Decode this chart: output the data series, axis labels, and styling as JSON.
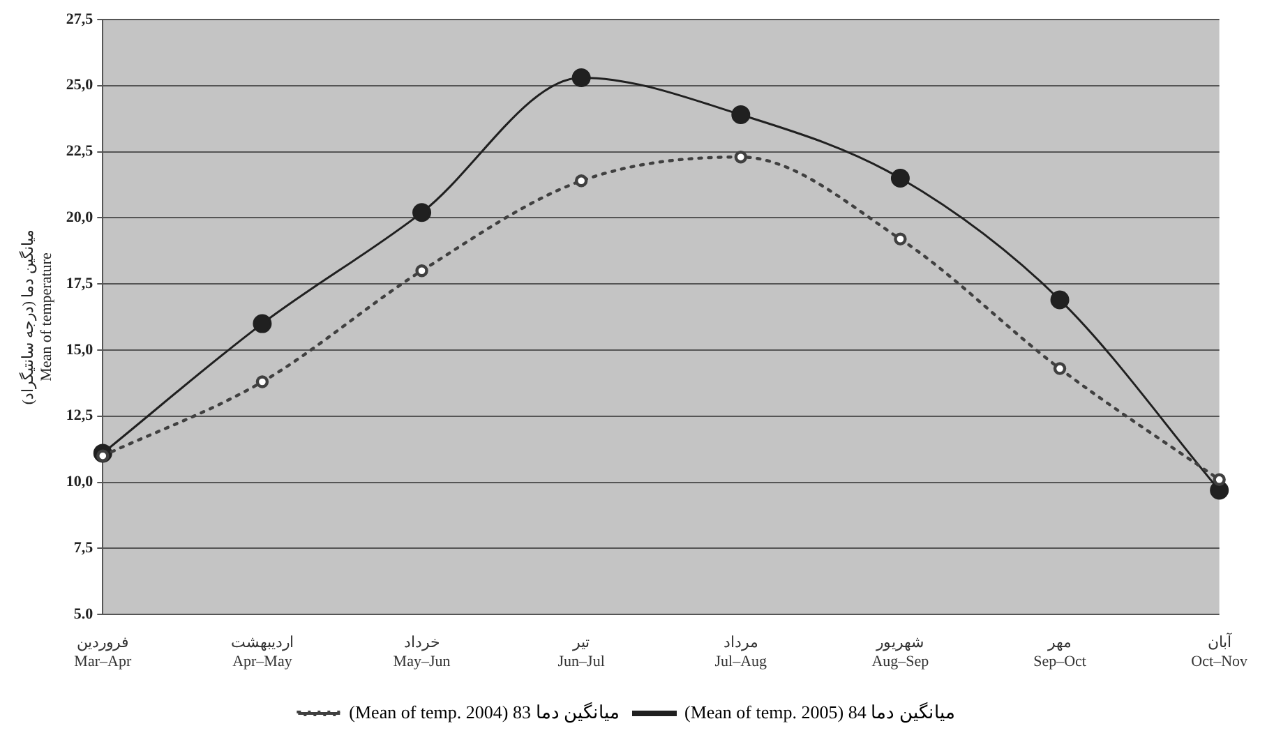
{
  "chart_data": {
    "type": "line",
    "ylabel": "میانگین دما (درجه سانتیگراد)\nMean of temperature",
    "categories": [
      "فروردین\nMar–Apr",
      "اردیبهشت\nApr–May",
      "خرداد\nMay–Jun",
      "تیر\nJun–Jul",
      "مرداد\nJul–Aug",
      "شهریور\nAug–Sep",
      "مهر\nSep–Oct",
      "آبان\nOct–Nov"
    ],
    "series": [
      {
        "name": "(Mean of temp. 2004) 83 میانگین دما",
        "color": "#404040",
        "line_style": "dotted",
        "marker": "circle",
        "values": [
          11.0,
          13.8,
          18.0,
          21.4,
          22.3,
          19.2,
          14.3,
          10.1
        ]
      },
      {
        "name": "(Mean of temp. 2005) 84 میانگین دما",
        "color": "#202020",
        "line_style": "solid",
        "marker": "circle",
        "values": [
          11.1,
          16.0,
          20.2,
          25.3,
          23.9,
          21.5,
          16.9,
          9.7
        ]
      }
    ],
    "ylim": [
      5,
      27.5
    ],
    "yticks": [
      {
        "value": 5,
        "label": "5.0"
      },
      {
        "value": 7.5,
        "label": "7,5"
      },
      {
        "value": 10,
        "label": "10,0"
      },
      {
        "value": 12.5,
        "label": "12,5"
      },
      {
        "value": 15,
        "label": "15,0"
      },
      {
        "value": 17.5,
        "label": "17,5"
      },
      {
        "value": 20,
        "label": "20,0"
      },
      {
        "value": 22.5,
        "label": "22,5"
      },
      {
        "value": 25,
        "label": "25,0"
      },
      {
        "value": 27.5,
        "label": "27,5"
      }
    ],
    "grid": "y",
    "legend": "bottom"
  }
}
